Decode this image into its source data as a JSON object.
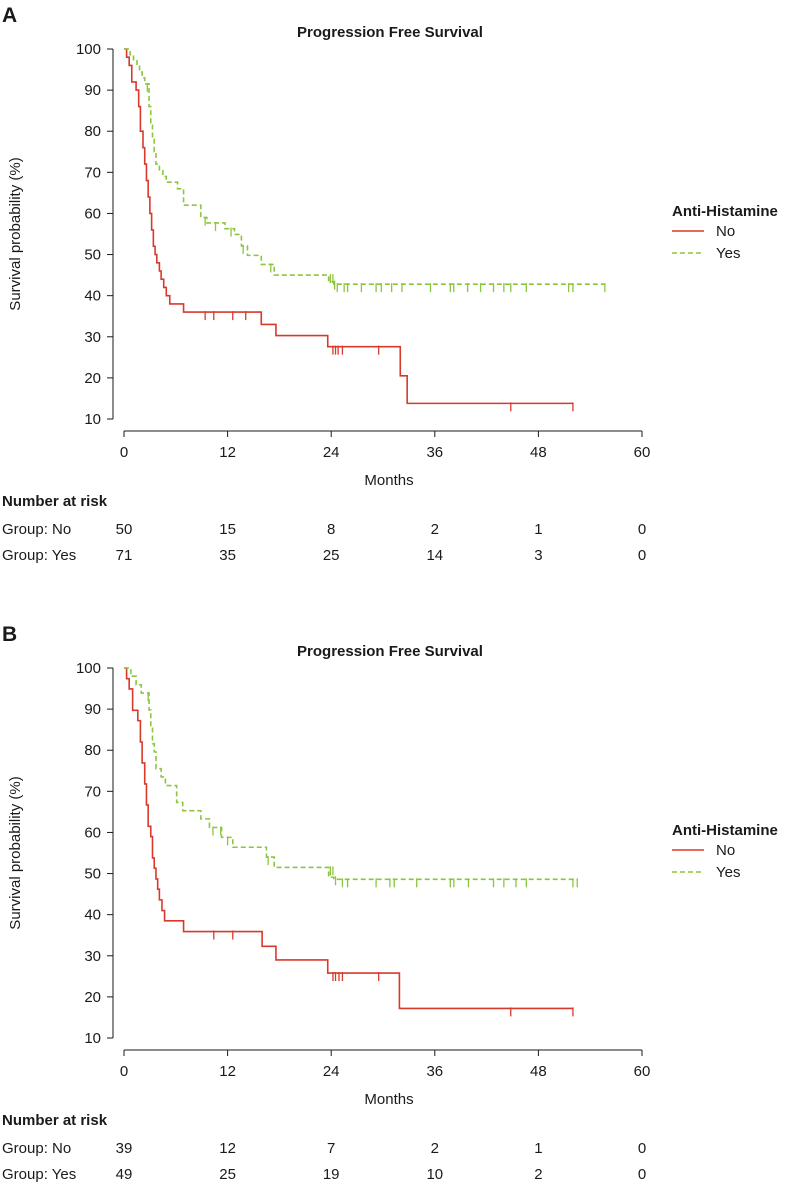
{
  "colors": {
    "no": "#d73a2c",
    "yes": "#8cc63f",
    "axis": "#1a1a1a"
  },
  "chart_data": [
    {
      "type": "line",
      "panel": "A",
      "title": "Progression Free Survival",
      "xlabel": "Months",
      "ylabel": "Survival probability (%)",
      "xlim": [
        0,
        60
      ],
      "ylim": [
        10,
        100
      ],
      "xticks": [
        0,
        12,
        24,
        36,
        48,
        60
      ],
      "yticks": [
        10,
        20,
        30,
        40,
        50,
        60,
        70,
        80,
        90,
        100
      ],
      "legend": {
        "title": "Anti-Histamine",
        "position": "right",
        "entries": [
          "No",
          "Yes"
        ]
      },
      "series": [
        {
          "name": "No",
          "style": "solid",
          "steps": [
            [
              0,
              100
            ],
            [
              0.3,
              98
            ],
            [
              0.6,
              96
            ],
            [
              0.9,
              92
            ],
            [
              1.4,
              90
            ],
            [
              1.7,
              86
            ],
            [
              1.9,
              80
            ],
            [
              2.2,
              76
            ],
            [
              2.4,
              72
            ],
            [
              2.6,
              68
            ],
            [
              2.8,
              64
            ],
            [
              3.0,
              60
            ],
            [
              3.2,
              56
            ],
            [
              3.4,
              52
            ],
            [
              3.6,
              50
            ],
            [
              3.8,
              48
            ],
            [
              4.1,
              46
            ],
            [
              4.3,
              44
            ],
            [
              4.6,
              42
            ],
            [
              4.9,
              40
            ],
            [
              5.3,
              38
            ],
            [
              6.9,
              36
            ],
            [
              15.9,
              33
            ],
            [
              17.6,
              30.3
            ],
            [
              23.6,
              27.6
            ],
            [
              32.0,
              20.5
            ],
            [
              32.8,
              13.8
            ],
            [
              52.0,
              13.8
            ]
          ],
          "censored": [
            [
              9.4,
              36
            ],
            [
              10.4,
              36
            ],
            [
              12.6,
              36
            ],
            [
              14.1,
              36
            ],
            [
              24.2,
              27.6
            ],
            [
              24.5,
              27.6
            ],
            [
              24.8,
              27.6
            ],
            [
              25.3,
              27.6
            ],
            [
              29.5,
              27.6
            ],
            [
              44.8,
              13.8
            ],
            [
              52.0,
              13.8
            ]
          ]
        },
        {
          "name": "Yes",
          "style": "dashed",
          "steps": [
            [
              0,
              100
            ],
            [
              0.7,
              98.6
            ],
            [
              1.1,
              97.2
            ],
            [
              1.5,
              95.8
            ],
            [
              1.8,
              94.4
            ],
            [
              2.1,
              93
            ],
            [
              2.4,
              91.5
            ],
            [
              2.9,
              86
            ],
            [
              3.1,
              82
            ],
            [
              3.3,
              78
            ],
            [
              3.5,
              75
            ],
            [
              3.7,
              72
            ],
            [
              4.1,
              70.4
            ],
            [
              4.5,
              69
            ],
            [
              4.9,
              67.6
            ],
            [
              6.2,
              66
            ],
            [
              6.9,
              62
            ],
            [
              8.9,
              59
            ],
            [
              9.6,
              57.7
            ],
            [
              11.7,
              56.3
            ],
            [
              12.8,
              54.9
            ],
            [
              13.6,
              52.1
            ],
            [
              14.3,
              49.8
            ],
            [
              15.9,
              47.6
            ],
            [
              17.4,
              45
            ],
            [
              23.7,
              43.4
            ],
            [
              24.3,
              42.8
            ],
            [
              55.7,
              42.8
            ]
          ],
          "censored": [
            [
              2.7,
              91.5
            ],
            [
              9.4,
              59
            ],
            [
              10.6,
              57.7
            ],
            [
              12.4,
              56.3
            ],
            [
              13.8,
              52.1
            ],
            [
              17.0,
              47.6
            ],
            [
              23.9,
              45
            ],
            [
              24.2,
              45
            ],
            [
              24.4,
              43.4
            ],
            [
              24.7,
              42.8
            ],
            [
              25.5,
              42.8
            ],
            [
              25.9,
              42.8
            ],
            [
              27.5,
              42.8
            ],
            [
              29.2,
              42.8
            ],
            [
              29.8,
              42.8
            ],
            [
              31.0,
              42.8
            ],
            [
              32.2,
              42.8
            ],
            [
              35.5,
              42.8
            ],
            [
              37.8,
              42.8
            ],
            [
              38.2,
              42.8
            ],
            [
              39.8,
              42.8
            ],
            [
              41.3,
              42.8
            ],
            [
              42.8,
              42.8
            ],
            [
              44.0,
              42.8
            ],
            [
              44.8,
              42.8
            ],
            [
              46.6,
              42.8
            ],
            [
              51.5,
              42.8
            ],
            [
              52.0,
              42.8
            ],
            [
              55.7,
              42.8
            ]
          ]
        }
      ],
      "risk_table": {
        "title": "Number at risk",
        "times": [
          0,
          12,
          24,
          36,
          48,
          60
        ],
        "rows": [
          {
            "label": "Group: No",
            "counts": [
              "50",
              "15",
              "8",
              "2",
              "1",
              "0"
            ]
          },
          {
            "label": "Group: Yes",
            "counts": [
              "71",
              "35",
              "25",
              "14",
              "3",
              "0"
            ]
          }
        ]
      }
    },
    {
      "type": "line",
      "panel": "B",
      "title": "Progression Free Survival",
      "xlabel": "Months",
      "ylabel": "Survival probability (%)",
      "xlim": [
        0,
        60
      ],
      "ylim": [
        10,
        100
      ],
      "xticks": [
        0,
        12,
        24,
        36,
        48,
        60
      ],
      "yticks": [
        10,
        20,
        30,
        40,
        50,
        60,
        70,
        80,
        90,
        100
      ],
      "legend": {
        "title": "Anti-Histamine",
        "position": "right",
        "entries": [
          "No",
          "Yes"
        ]
      },
      "series": [
        {
          "name": "No",
          "style": "solid",
          "steps": [
            [
              0,
              100
            ],
            [
              0.3,
              97.4
            ],
            [
              0.6,
              94.9
            ],
            [
              1.0,
              89.7
            ],
            [
              1.6,
              87.2
            ],
            [
              1.9,
              82
            ],
            [
              2.1,
              76.9
            ],
            [
              2.4,
              71.8
            ],
            [
              2.6,
              66.7
            ],
            [
              2.8,
              61.5
            ],
            [
              3.1,
              59
            ],
            [
              3.3,
              53.8
            ],
            [
              3.5,
              51.3
            ],
            [
              3.7,
              48.7
            ],
            [
              3.9,
              46.2
            ],
            [
              4.1,
              43.6
            ],
            [
              4.4,
              41
            ],
            [
              4.7,
              38.5
            ],
            [
              6.9,
              35.9
            ],
            [
              16.0,
              32.3
            ],
            [
              17.6,
              29
            ],
            [
              23.6,
              25.8
            ],
            [
              31.9,
              17.2
            ],
            [
              52.0,
              17.2
            ]
          ],
          "censored": [
            [
              10.4,
              35.9
            ],
            [
              12.6,
              35.9
            ],
            [
              24.2,
              25.8
            ],
            [
              24.5,
              25.8
            ],
            [
              24.9,
              25.8
            ],
            [
              25.3,
              25.8
            ],
            [
              29.5,
              25.8
            ],
            [
              44.8,
              17.2
            ],
            [
              52.0,
              17.2
            ]
          ]
        },
        {
          "name": "Yes",
          "style": "dashed",
          "steps": [
            [
              0,
              100
            ],
            [
              0.8,
              98
            ],
            [
              1.4,
              95.9
            ],
            [
              2.0,
              93.9
            ],
            [
              2.9,
              89.8
            ],
            [
              3.1,
              85.7
            ],
            [
              3.3,
              81.6
            ],
            [
              3.5,
              79.6
            ],
            [
              3.7,
              75.5
            ],
            [
              4.3,
              73.5
            ],
            [
              4.8,
              71.4
            ],
            [
              6.1,
              67.3
            ],
            [
              6.8,
              65.3
            ],
            [
              8.9,
              63.3
            ],
            [
              9.9,
              61.2
            ],
            [
              11.3,
              58.8
            ],
            [
              12.6,
              56.4
            ],
            [
              16.5,
              54
            ],
            [
              17.4,
              51.5
            ],
            [
              23.7,
              49.1
            ],
            [
              24.3,
              48.6
            ],
            [
              52.5,
              48.6
            ]
          ],
          "censored": [
            [
              2.8,
              93.9
            ],
            [
              10.3,
              61.2
            ],
            [
              11.2,
              61.2
            ],
            [
              12.0,
              58.8
            ],
            [
              16.7,
              54
            ],
            [
              23.9,
              51.5
            ],
            [
              24.2,
              51.5
            ],
            [
              24.5,
              49.1
            ],
            [
              25.3,
              48.6
            ],
            [
              25.9,
              48.6
            ],
            [
              29.2,
              48.6
            ],
            [
              30.8,
              48.6
            ],
            [
              31.3,
              48.6
            ],
            [
              33.9,
              48.6
            ],
            [
              37.8,
              48.6
            ],
            [
              38.2,
              48.6
            ],
            [
              39.9,
              48.6
            ],
            [
              42.8,
              48.6
            ],
            [
              44.0,
              48.6
            ],
            [
              45.4,
              48.6
            ],
            [
              46.6,
              48.6
            ],
            [
              52.0,
              48.6
            ],
            [
              52.5,
              48.6
            ]
          ]
        }
      ],
      "risk_table": {
        "title": "Number at risk",
        "times": [
          0,
          12,
          24,
          36,
          48,
          60
        ],
        "rows": [
          {
            "label": "Group: No",
            "counts": [
              "39",
              "12",
              "7",
              "2",
              "1",
              "0"
            ]
          },
          {
            "label": "Group: Yes",
            "counts": [
              "49",
              "25",
              "19",
              "10",
              "2",
              "0"
            ]
          }
        ]
      }
    }
  ]
}
